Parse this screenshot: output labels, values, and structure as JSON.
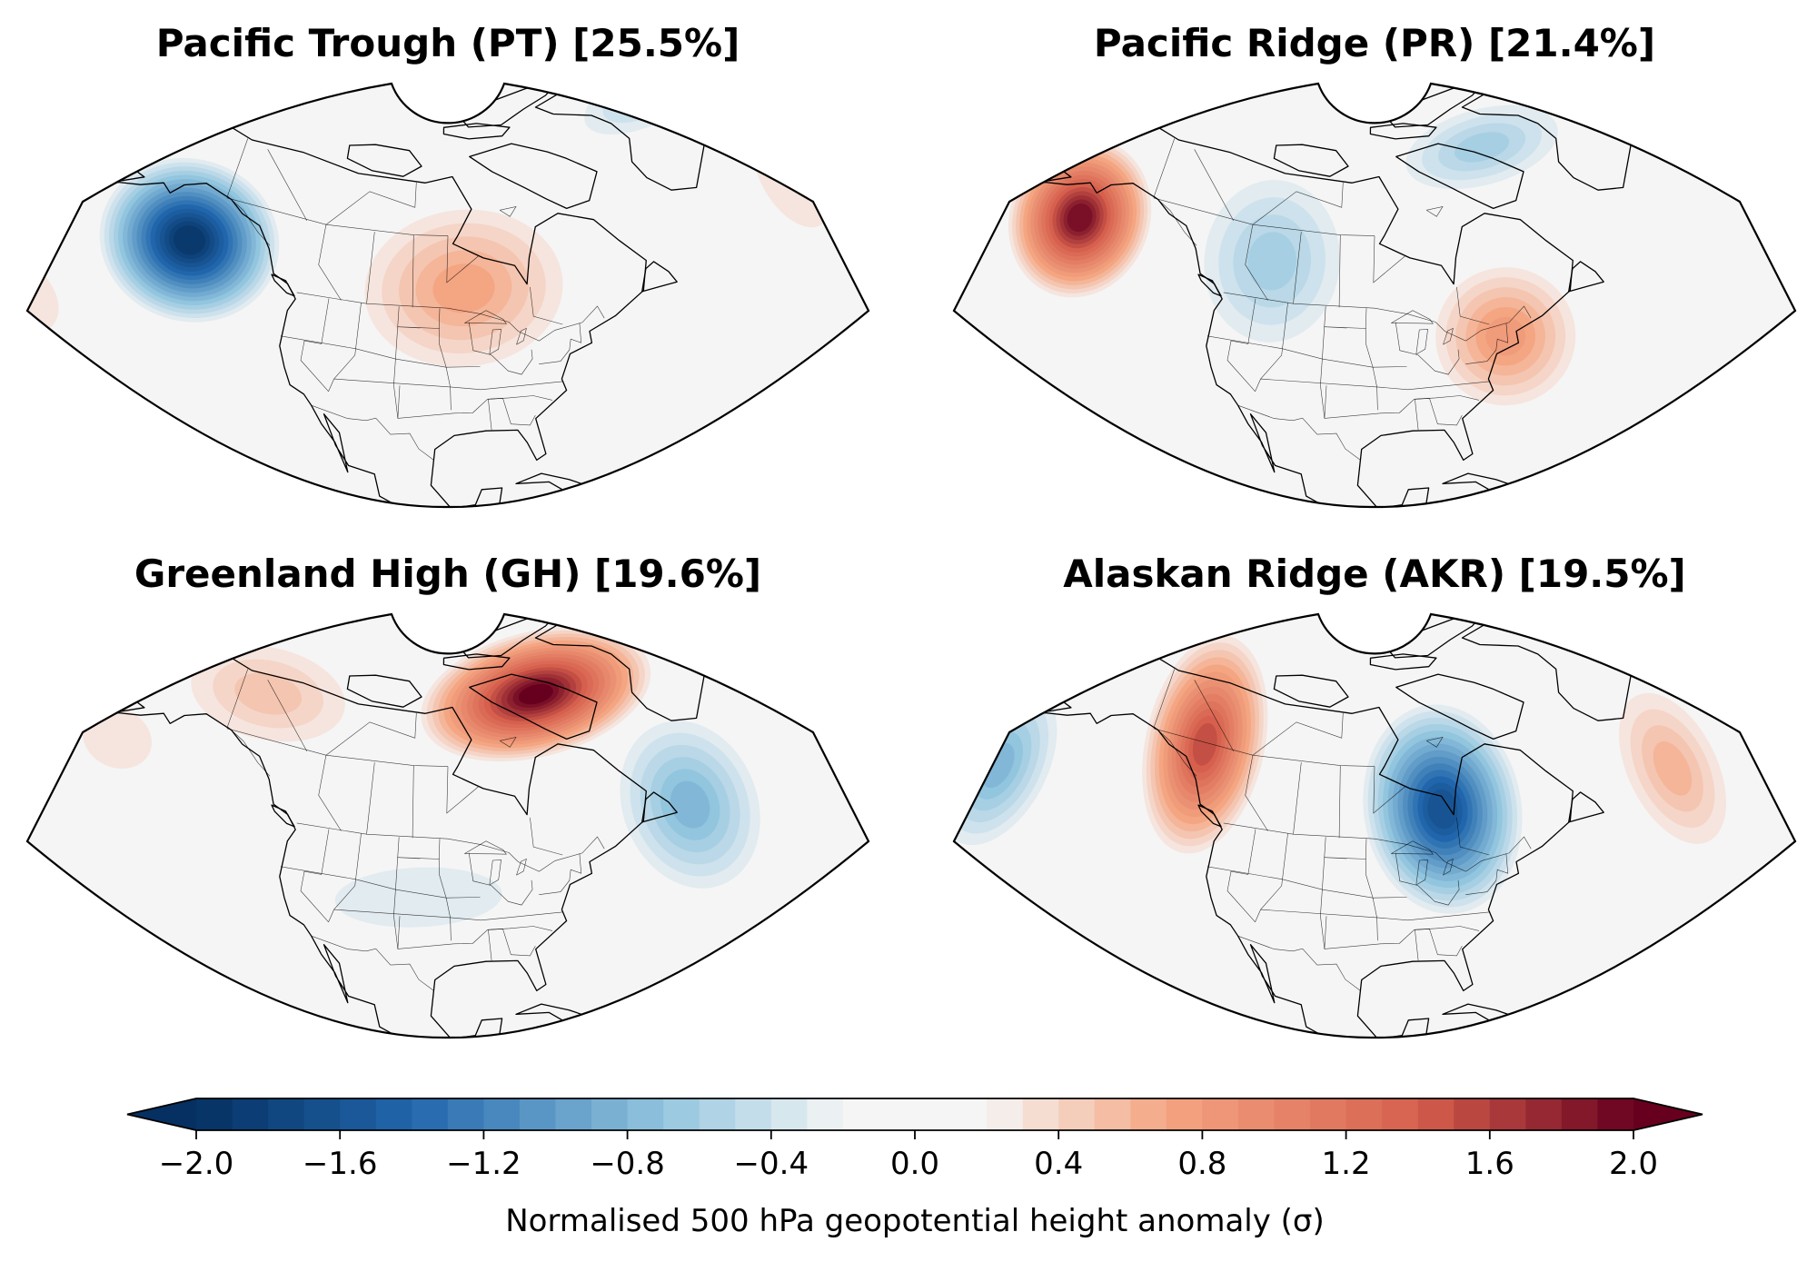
{
  "colors": {
    "strong_blue": "#053061",
    "mid_blue": "#2166ac",
    "light_blue": "#92c5de",
    "neutral": "#f5f5f5",
    "light_red": "#f4a582",
    "mid_red": "#d6604d",
    "strong_red": "#67001f",
    "coast": "#000000",
    "frame": "#000000"
  },
  "panels": [
    {
      "title": "Pacific Trough (PT) [25.5%]",
      "anomalies": [
        {
          "label": "Gulf of Alaska trough",
          "value": -1.9,
          "lon": -145,
          "lat": 52,
          "rlon": 18,
          "rlat": 13
        },
        {
          "label": "Canadian ridge",
          "value": 0.7,
          "lon": -92,
          "lat": 52,
          "rlon": 22,
          "rlat": 14
        },
        {
          "label": "Greenland trough",
          "value": -0.5,
          "lon": -45,
          "lat": 76,
          "rlon": 22,
          "rlat": 6
        },
        {
          "label": "Atlantic ridge",
          "value": 0.35,
          "lon": -25,
          "lat": 55,
          "rlon": 9,
          "rlat": 13
        },
        {
          "label": "Subtropical Pacific ridge",
          "value": 0.35,
          "lon": -172,
          "lat": 32,
          "rlon": 18,
          "rlat": 10
        }
      ]
    },
    {
      "title": "Pacific Ridge (PR) [21.4%]",
      "anomalies": [
        {
          "label": "North Pacific ridge",
          "value": 1.9,
          "lon": -153,
          "lat": 53,
          "rlon": 14,
          "rlat": 13
        },
        {
          "label": "Western Canada trough",
          "value": -0.6,
          "lon": -115,
          "lat": 55,
          "rlon": 16,
          "rlat": 15
        },
        {
          "label": "Arctic trough",
          "value": -0.6,
          "lon": -70,
          "lat": 72,
          "rlon": 22,
          "rlat": 7
        },
        {
          "label": "Eastern US ridge",
          "value": 0.8,
          "lon": -72,
          "lat": 43,
          "rlon": 14,
          "rlat": 12
        }
      ]
    },
    {
      "title": "Greenland High (GH) [19.6%]",
      "anomalies": [
        {
          "label": "Greenland high",
          "value": 1.95,
          "lon": -75,
          "lat": 70,
          "rlon": 28,
          "rlat": 10
        },
        {
          "label": "Alaska ridge",
          "value": 0.5,
          "lon": -135,
          "lat": 67,
          "rlon": 22,
          "rlat": 9
        },
        {
          "label": "North Atlantic trough",
          "value": -0.8,
          "lon": -50,
          "lat": 48,
          "rlon": 14,
          "rlat": 15
        },
        {
          "label": "United States trough",
          "value": -0.35,
          "lon": -100,
          "lat": 40,
          "rlon": 22,
          "rlat": 7
        },
        {
          "label": "Central Pacific ridge",
          "value": 0.3,
          "lon": -160,
          "lat": 52,
          "rlon": 12,
          "rlat": 8
        }
      ]
    },
    {
      "title": "Alaskan Ridge (AKR) [19.5%]",
      "anomalies": [
        {
          "label": "Alaska ridge",
          "value": 1.5,
          "lon": -130,
          "lat": 60,
          "rlon": 13,
          "rlat": 18
        },
        {
          "label": "Hudson Bay trough",
          "value": -1.6,
          "lon": -82,
          "lat": 53,
          "rlon": 16,
          "rlat": 17
        },
        {
          "label": "North Pacific trough",
          "value": -0.8,
          "lon": -165,
          "lat": 45,
          "rlon": 10,
          "rlat": 15
        },
        {
          "label": "Atlantic ridge",
          "value": 0.6,
          "lon": -38,
          "lat": 50,
          "rlon": 10,
          "rlat": 15
        }
      ]
    }
  ],
  "colorbar": {
    "min": -2.0,
    "max": 2.0,
    "step": 0.1,
    "ticks": [
      -2.0,
      -1.6,
      -1.2,
      -0.8,
      -0.4,
      0.0,
      0.4,
      0.8,
      1.2,
      1.6,
      2.0
    ],
    "tick_labels": [
      "−2.0",
      "−1.6",
      "−1.2",
      "−0.8",
      "−0.4",
      "0.0",
      "0.4",
      "0.8",
      "1.2",
      "1.6",
      "2.0"
    ],
    "label": "Normalised 500 hPa geopotential height anomaly (σ)"
  },
  "map_extent": {
    "lon_min": -180,
    "lon_max": -10,
    "lat_min": 15,
    "lat_max": 80
  }
}
